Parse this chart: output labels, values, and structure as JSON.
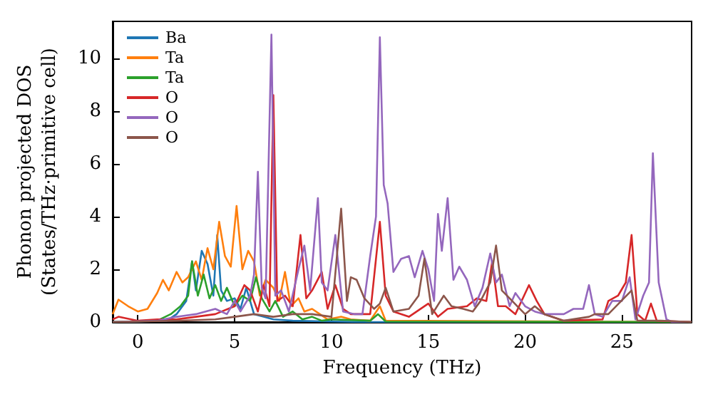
{
  "chart_data": {
    "type": "line",
    "xlabel": "Frequency (THz)",
    "ylabel": "Phonon projected DOS\n(States/THz·primitive cell)",
    "xlim": [
      -1.3,
      28.6
    ],
    "ylim": [
      0,
      11.4
    ],
    "xticks": [
      0,
      5,
      10,
      15,
      20,
      25
    ],
    "yticks": [
      0,
      2,
      4,
      6,
      8,
      10
    ],
    "grid": false,
    "legend": "top left",
    "marker": "none",
    "line_style": "solid",
    "series": [
      {
        "name": "Ba",
        "color": "#1f77b4",
        "x": [
          -1.3,
          1.5,
          2.0,
          2.5,
          2.8,
          3.0,
          3.3,
          3.6,
          3.9,
          4.1,
          4.3,
          4.6,
          5.0,
          5.3,
          5.6,
          6.0,
          6.5,
          7.0,
          8,
          10,
          12,
          28.6
        ],
        "values": [
          0,
          0.05,
          0.3,
          0.8,
          2.3,
          1.2,
          2.7,
          2.2,
          1.0,
          3.3,
          1.2,
          0.8,
          0.9,
          0.5,
          1.3,
          0.3,
          0.2,
          0.1,
          0.05,
          0.02,
          0,
          0
        ]
      },
      {
        "name": "Ta",
        "color": "#ff7f0e",
        "x": [
          -1.3,
          -1,
          -0.5,
          0,
          0.5,
          1,
          1.3,
          1.6,
          2.0,
          2.3,
          2.6,
          3,
          3.3,
          3.6,
          3.9,
          4.2,
          4.5,
          4.8,
          5.1,
          5.4,
          5.7,
          6.0,
          6.3,
          6.6,
          7.0,
          7.3,
          7.6,
          7.9,
          8.3,
          8.6,
          9.0,
          9.4,
          9.8,
          10.5,
          11,
          12,
          12.5,
          12.8,
          28.6
        ],
        "values": [
          0.3,
          0.85,
          0.6,
          0.4,
          0.5,
          1.1,
          1.6,
          1.2,
          1.9,
          1.5,
          1.7,
          2.3,
          1.6,
          2.8,
          2.0,
          3.8,
          2.5,
          2.1,
          4.4,
          2.0,
          2.7,
          2.3,
          1.0,
          1.6,
          1.3,
          0.8,
          1.9,
          0.6,
          0.9,
          0.4,
          0.5,
          0.3,
          0.1,
          0.2,
          0.1,
          0.05,
          0.6,
          0.05,
          0
        ]
      },
      {
        "name": "Ta",
        "color": "#2ca02c",
        "x": [
          -1.3,
          1,
          1.7,
          2.2,
          2.6,
          2.8,
          3.1,
          3.4,
          3.7,
          4.0,
          4.3,
          4.6,
          5.0,
          5.4,
          5.8,
          6.1,
          6.4,
          6.8,
          7.1,
          7.5,
          8,
          8.5,
          9,
          9.5,
          10,
          12,
          12.4,
          12.8,
          28.6
        ],
        "values": [
          0,
          0.05,
          0.3,
          0.6,
          1.0,
          2.3,
          1.0,
          1.8,
          0.9,
          1.4,
          0.8,
          1.3,
          0.6,
          1.0,
          0.8,
          1.7,
          0.9,
          0.4,
          0.8,
          0.2,
          0.4,
          0.1,
          0.2,
          0.05,
          0.1,
          0.05,
          0.3,
          0.02,
          0
        ]
      },
      {
        "name": "O",
        "color": "#d62728",
        "x": [
          -1.3,
          -1,
          0,
          1,
          2,
          3,
          4,
          5,
          5.5,
          5.8,
          6.2,
          6.5,
          6.8,
          7.0,
          7.2,
          7.6,
          8.0,
          8.4,
          8.7,
          9.0,
          9.5,
          9.8,
          10.2,
          10.6,
          11,
          12,
          12.5,
          12.8,
          13.2,
          14,
          15,
          15.5,
          16,
          17,
          17.5,
          18,
          18.3,
          18.6,
          19,
          19.5,
          20.2,
          20.6,
          21,
          22,
          24,
          24.3,
          24.8,
          25.2,
          25.5,
          25.8,
          26.2,
          26.5,
          26.8,
          28.6
        ],
        "values": [
          0.1,
          0.2,
          0.05,
          0.1,
          0.1,
          0.2,
          0.3,
          0.6,
          1.4,
          1.2,
          0.4,
          1.4,
          0.6,
          8.6,
          0.8,
          1.0,
          0.6,
          3.3,
          0.9,
          1.2,
          1.9,
          0.5,
          1.4,
          0.5,
          0.3,
          0.3,
          3.8,
          1.0,
          0.4,
          0.2,
          0.7,
          0.2,
          0.5,
          0.6,
          0.9,
          0.8,
          2.3,
          0.6,
          0.6,
          0.3,
          1.4,
          0.8,
          0.3,
          0.05,
          0.1,
          0.8,
          1.0,
          1.5,
          3.3,
          0.3,
          0.05,
          0.7,
          0.05,
          0
        ]
      },
      {
        "name": "O",
        "color": "#9467bd",
        "x": [
          -1.3,
          1,
          2,
          3,
          4,
          4.6,
          5.0,
          5.3,
          5.8,
          6.0,
          6.2,
          6.4,
          6.6,
          6.9,
          7.1,
          7.4,
          7.8,
          8.3,
          8.6,
          8.9,
          9.3,
          9.5,
          9.8,
          10.2,
          10.6,
          11.2,
          11.6,
          12.0,
          12.3,
          12.5,
          12.7,
          12.9,
          13.2,
          13.6,
          14,
          14.3,
          14.7,
          15.0,
          15.3,
          15.5,
          15.7,
          16.0,
          16.3,
          16.6,
          17.0,
          17.4,
          17.8,
          18.2,
          18.5,
          18.8,
          19.2,
          19.5,
          20.0,
          20.5,
          21,
          22,
          22.5,
          23,
          23.3,
          23.6,
          24,
          24.5,
          25,
          25.4,
          25.7,
          26.1,
          26.4,
          26.6,
          26.9,
          27.3,
          27.6,
          28.6
        ],
        "values": [
          0,
          0.05,
          0.2,
          0.3,
          0.5,
          0.3,
          0.8,
          0.4,
          1.0,
          1.8,
          5.7,
          1.3,
          0.9,
          10.9,
          1.0,
          1.2,
          0.4,
          2.0,
          2.9,
          1.2,
          4.7,
          1.5,
          1.2,
          3.3,
          0.4,
          0.3,
          0.3,
          2.5,
          4.0,
          10.8,
          5.2,
          4.5,
          1.9,
          2.4,
          2.5,
          1.7,
          2.7,
          2.0,
          0.8,
          4.1,
          2.7,
          4.7,
          1.6,
          2.1,
          1.6,
          0.6,
          1.3,
          2.6,
          1.5,
          1.8,
          0.6,
          1.1,
          0.6,
          0.4,
          0.3,
          0.3,
          0.5,
          0.5,
          1.4,
          0.3,
          0.2,
          0.8,
          0.8,
          1.7,
          0.1,
          1.0,
          1.5,
          6.4,
          1.5,
          0.1,
          0,
          0
        ]
      },
      {
        "name": "O",
        "color": "#8c564b",
        "x": [
          -1.3,
          2,
          4,
          5,
          6,
          7,
          8,
          9,
          10,
          10.5,
          10.8,
          11,
          11.3,
          11.7,
          12.2,
          12.5,
          12.8,
          13.2,
          14,
          14.5,
          14.8,
          15.2,
          15.8,
          16.2,
          16.8,
          17.3,
          17.7,
          18.2,
          18.5,
          18.8,
          19.2,
          19.6,
          20.0,
          20.5,
          21,
          22,
          23.3,
          23.6,
          24.3,
          25.5,
          25.8,
          27,
          28.6
        ],
        "values": [
          0,
          0.05,
          0.1,
          0.2,
          0.3,
          0.2,
          0.3,
          0.3,
          0.2,
          4.3,
          0.8,
          1.7,
          1.6,
          0.9,
          0.5,
          0.7,
          1.3,
          0.4,
          0.5,
          1.0,
          2.4,
          0.3,
          1.0,
          0.6,
          0.5,
          0.4,
          0.8,
          1.5,
          2.9,
          1.2,
          0.9,
          0.6,
          0.3,
          0.6,
          0.3,
          0.05,
          0.2,
          0.3,
          0.3,
          1.2,
          0.05,
          0.05,
          0
        ]
      }
    ]
  }
}
